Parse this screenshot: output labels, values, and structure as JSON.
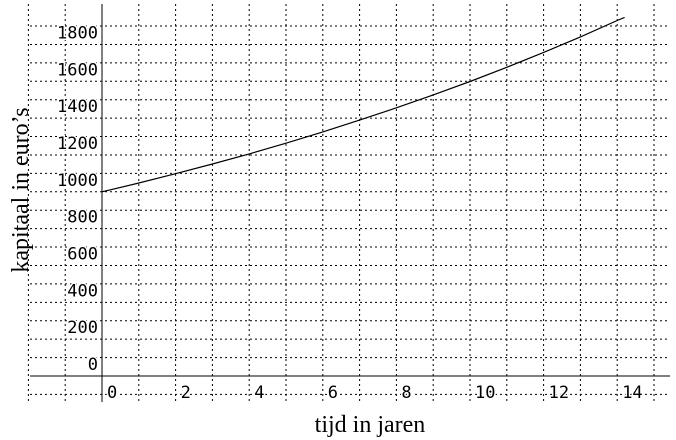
{
  "chart_data": {
    "type": "line",
    "title": "",
    "xlabel": "tijd in jaren",
    "ylabel": "kapitaal in euro’s",
    "xlim": [
      -2,
      15
    ],
    "ylim": [
      -200,
      1950
    ],
    "x_ticks": [
      0,
      2,
      4,
      6,
      8,
      10,
      12,
      14
    ],
    "y_ticks": [
      0,
      200,
      400,
      600,
      800,
      1000,
      1200,
      1400,
      1600,
      1800
    ],
    "x_tick_labels": [
      "0",
      "2",
      "4",
      "6",
      "8",
      "10",
      "12",
      "14"
    ],
    "y_tick_labels": [
      "0",
      "200",
      "400",
      "600",
      "800",
      "1000",
      "1200",
      "1400",
      "1600",
      "1800"
    ],
    "grid": true,
    "series": [
      {
        "x": [
          0,
          1,
          2,
          3,
          4,
          5,
          6,
          7,
          8,
          9,
          10,
          11,
          12,
          13,
          14,
          14.2
        ],
        "values": [
          1000,
          1048,
          1098,
          1151,
          1206,
          1264,
          1325,
          1389,
          1456,
          1526,
          1599,
          1676,
          1757,
          1841,
          1930,
          1947
        ]
      }
    ]
  }
}
